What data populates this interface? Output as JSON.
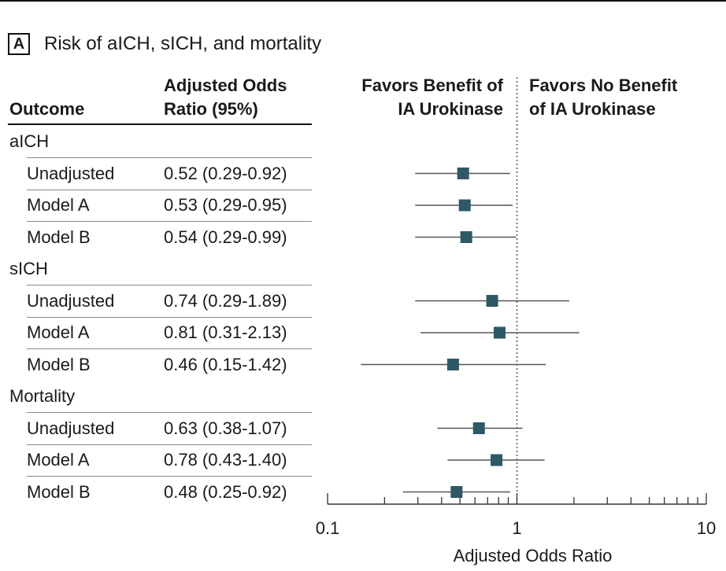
{
  "panel": {
    "letter": "A",
    "title": "Risk of aICH, sICH, and mortality"
  },
  "headers": {
    "outcome": "Outcome",
    "aor_line1": "Adjusted Odds",
    "aor_line2": "Ratio (95%)",
    "favors_left_line1": "Favors Benefit of",
    "favors_left_line2": "IA Urokinase",
    "favors_right_line1": "Favors No Benefit",
    "favors_right_line2": "of IA Urokinase"
  },
  "groups": [
    {
      "name": "aICH"
    },
    {
      "name": "sICH"
    },
    {
      "name": "Mortality"
    }
  ],
  "colors": {
    "marker": "#2e5866",
    "ci_line": "#555555",
    "ref_line": "#555555"
  },
  "chart_data": {
    "type": "forest",
    "x_scale": "log",
    "xlim": [
      0.1,
      10
    ],
    "xlabel": "Adjusted Odds Ratio",
    "x_ticks": [
      0.1,
      1,
      10
    ],
    "x_tick_labels": [
      "0.1",
      "1",
      "10"
    ],
    "reference_line": 1,
    "rows": [
      {
        "group": "aICH",
        "label": "Unadjusted",
        "text": "0.52 (0.29-0.92)",
        "or": 0.52,
        "lo": 0.29,
        "hi": 0.92
      },
      {
        "group": "aICH",
        "label": "Model A",
        "text": "0.53 (0.29-0.95)",
        "or": 0.53,
        "lo": 0.29,
        "hi": 0.95
      },
      {
        "group": "aICH",
        "label": "Model B",
        "text": "0.54 (0.29-0.99)",
        "or": 0.54,
        "lo": 0.29,
        "hi": 0.99
      },
      {
        "group": "sICH",
        "label": "Unadjusted",
        "text": "0.74 (0.29-1.89)",
        "or": 0.74,
        "lo": 0.29,
        "hi": 1.89
      },
      {
        "group": "sICH",
        "label": "Model A",
        "text": "0.81 (0.31-2.13)",
        "or": 0.81,
        "lo": 0.31,
        "hi": 2.13
      },
      {
        "group": "sICH",
        "label": "Model B",
        "text": "0.46 (0.15-1.42)",
        "or": 0.46,
        "lo": 0.15,
        "hi": 1.42
      },
      {
        "group": "Mortality",
        "label": "Unadjusted",
        "text": "0.63 (0.38-1.07)",
        "or": 0.63,
        "lo": 0.38,
        "hi": 1.07
      },
      {
        "group": "Mortality",
        "label": "Model A",
        "text": "0.78 (0.43-1.40)",
        "or": 0.78,
        "lo": 0.43,
        "hi": 1.4
      },
      {
        "group": "Mortality",
        "label": "Model B",
        "text": "0.48 (0.25-0.92)",
        "or": 0.48,
        "lo": 0.25,
        "hi": 0.92
      }
    ]
  }
}
